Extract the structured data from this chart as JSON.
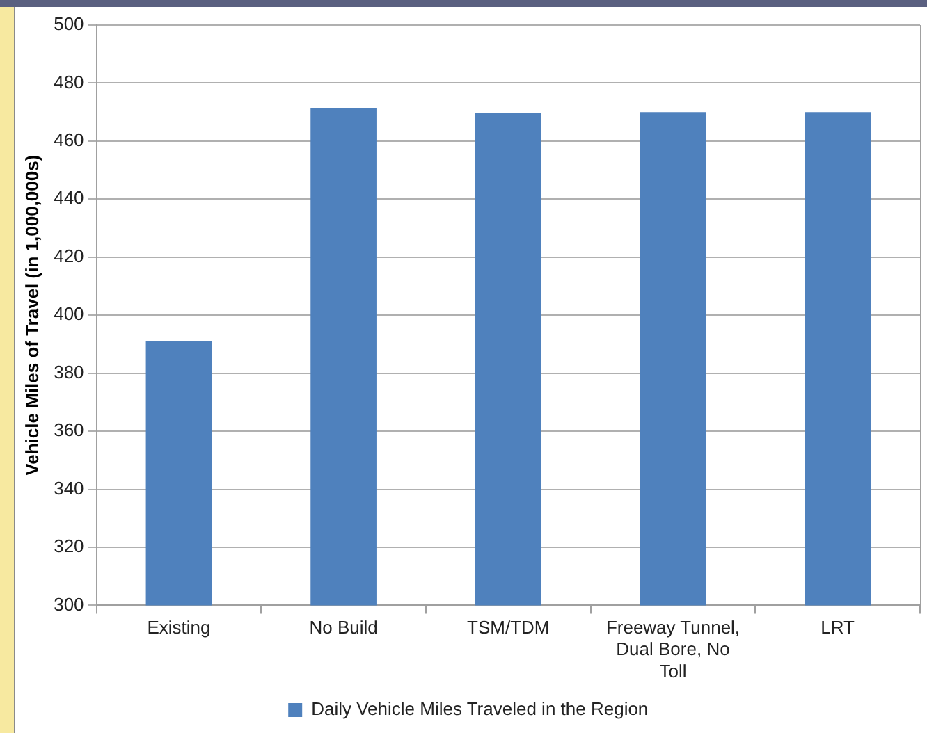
{
  "chart_data": {
    "type": "bar",
    "ylabel": "Vehicle Miles of Travel (in 1,000,000s)",
    "categories": [
      "Existing",
      "No Build",
      "TSM/TDM",
      "Freeway Tunnel, Dual Bore, No Toll",
      "LRT"
    ],
    "series": [
      {
        "name": "Daily Vehicle Miles Traveled in the Region",
        "color": "#4f81bd",
        "values": [
          391,
          471.5,
          469.6,
          470,
          470
        ]
      }
    ],
    "ylim": [
      300,
      500
    ],
    "yticks": [
      300,
      320,
      340,
      360,
      380,
      400,
      420,
      440,
      460,
      480,
      500
    ],
    "grid": "y",
    "legend": "bottom"
  }
}
